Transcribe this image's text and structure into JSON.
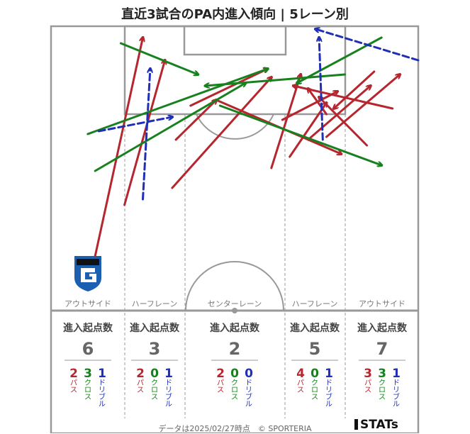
{
  "title": "直近3試合のPA内進入傾向 | 5レーン別",
  "lane_names": [
    "アウトサイド",
    "ハーフレーン",
    "センターレーン",
    "ハーフレーン",
    "アウトサイド"
  ],
  "stat_header": "進入起点数",
  "type_labels": {
    "pass": "パス",
    "cross": "クロス",
    "dribble": "ドリブル"
  },
  "colors": {
    "pass": "#b5262e",
    "cross": "#17811e",
    "dribble": "#1f2fb8",
    "pitch_line": "#999999"
  },
  "lane_stats": [
    {
      "total": "6",
      "pass": "2",
      "cross": "3",
      "dribble": "1"
    },
    {
      "total": "3",
      "pass": "2",
      "cross": "0",
      "dribble": "1"
    },
    {
      "total": "2",
      "pass": "2",
      "cross": "0",
      "dribble": "0"
    },
    {
      "total": "5",
      "pass": "4",
      "cross": "0",
      "dribble": "1"
    },
    {
      "total": "7",
      "pass": "3",
      "cross": "3",
      "dribble": "1"
    }
  ],
  "footer": "データは2025/02/27時点　© SPORTERIA",
  "brand": "STATs",
  "team_logo": "gamba-osaka-crest",
  "chart_data": {
    "type": "arrows",
    "description_units": "pitch coordinates (width 0-100 left to right, length 0-100 from goal line downward)",
    "arrows": [
      {
        "type": "pass",
        "from": [
          12,
          81
        ],
        "to": [
          25,
          4
        ]
      },
      {
        "type": "pass",
        "from": [
          20,
          63
        ],
        "to": [
          31,
          12
        ]
      },
      {
        "type": "pass",
        "from": [
          34,
          40
        ],
        "to": [
          45,
          26
        ]
      },
      {
        "type": "pass",
        "from": [
          33,
          57
        ],
        "to": [
          60,
          18
        ]
      },
      {
        "type": "pass",
        "from": [
          38,
          28
        ],
        "to": [
          59,
          15
        ]
      },
      {
        "type": "pass",
        "from": [
          45,
          26
        ],
        "to": [
          79,
          45
        ]
      },
      {
        "type": "pass",
        "from": [
          60,
          50
        ],
        "to": [
          68,
          17
        ]
      },
      {
        "type": "pass",
        "from": [
          63,
          33
        ],
        "to": [
          78,
          23
        ]
      },
      {
        "type": "pass",
        "from": [
          65,
          46
        ],
        "to": [
          75,
          27
        ]
      },
      {
        "type": "pass",
        "from": [
          75,
          31
        ],
        "to": [
          70,
          22
        ]
      },
      {
        "type": "pass",
        "from": [
          70,
          40
        ],
        "to": [
          87,
          21
        ]
      },
      {
        "type": "pass",
        "from": [
          93,
          29
        ],
        "to": [
          66,
          21
        ]
      },
      {
        "type": "pass",
        "from": [
          86,
          42
        ],
        "to": [
          73,
          25
        ]
      },
      {
        "type": "pass",
        "from": [
          88,
          16
        ],
        "to": [
          77,
          29
        ]
      },
      {
        "type": "pass",
        "from": [
          75,
          39
        ],
        "to": [
          95,
          17
        ]
      },
      {
        "type": "cross",
        "from": [
          19,
          6
        ],
        "to": [
          40,
          17
        ]
      },
      {
        "type": "cross",
        "from": [
          10,
          38
        ],
        "to": [
          59,
          15
        ]
      },
      {
        "type": "cross",
        "from": [
          12,
          51
        ],
        "to": [
          53,
          20
        ]
      },
      {
        "type": "cross",
        "from": [
          90,
          4
        ],
        "to": [
          67,
          20
        ]
      },
      {
        "type": "cross",
        "from": [
          80,
          17
        ],
        "to": [
          42,
          21
        ]
      },
      {
        "type": "cross",
        "from": [
          46,
          28
        ],
        "to": [
          90,
          49
        ]
      },
      {
        "type": "dribble",
        "from": [
          13,
          37
        ],
        "to": [
          33,
          32
        ]
      },
      {
        "type": "dribble",
        "from": [
          25,
          61
        ],
        "to": [
          27,
          15
        ]
      },
      {
        "type": "dribble",
        "from": [
          74,
          40
        ],
        "to": [
          73,
          4
        ]
      },
      {
        "type": "dribble",
        "from": [
          100,
          12
        ],
        "to": [
          72,
          1
        ]
      }
    ]
  }
}
